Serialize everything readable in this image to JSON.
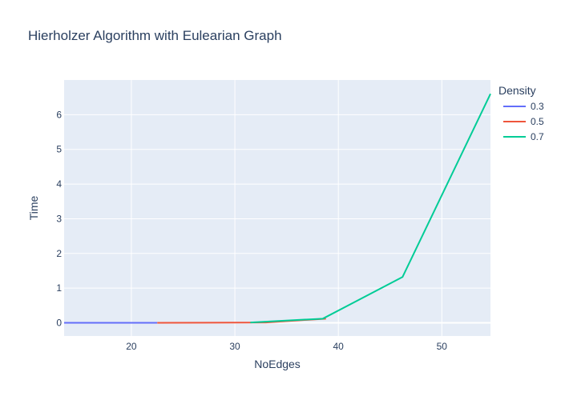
{
  "chart_data": {
    "type": "line",
    "title": "Hierholzer Algorithm with Eulearian Graph",
    "xlabel": "NoEdges",
    "ylabel": "Time",
    "xlim": [
      13.5,
      54.7
    ],
    "ylim": [
      -0.38,
      7.0
    ],
    "xticks": [
      20,
      30,
      40,
      50
    ],
    "yticks": [
      0,
      1,
      2,
      3,
      4,
      5,
      6
    ],
    "grid": true,
    "legend": {
      "title": "Density",
      "placement": "top-right outside"
    },
    "series": [
      {
        "name": "0.3",
        "color": "#636efa",
        "x": [
          13.5,
          22.5
        ],
        "y": [
          0.0,
          0.0
        ]
      },
      {
        "name": "0.5",
        "color": "#ef553b",
        "x": [
          22.5,
          33.0,
          38.8
        ],
        "y": [
          0.0,
          0.01,
          0.12
        ]
      },
      {
        "name": "0.7",
        "color": "#00cc96",
        "x": [
          31.5,
          38.5,
          46.2,
          54.7
        ],
        "y": [
          0.01,
          0.12,
          1.32,
          6.6
        ]
      }
    ]
  }
}
